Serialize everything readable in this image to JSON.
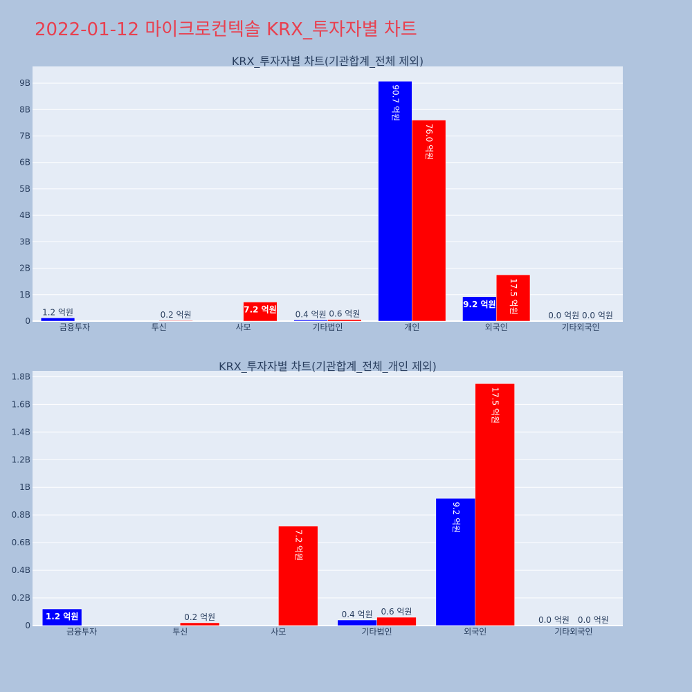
{
  "title": "2022-01-12 마이크로컨텍솔 KRX_투자자별 차트",
  "colors": {
    "series_a": "#0000ff",
    "series_b": "#ff0000",
    "background": "#b0c4de",
    "plot_bg": "#e5ecf6",
    "title": "#e8404f"
  },
  "chart_data": [
    {
      "type": "bar",
      "title": "KRX_투자자별 차트(기관합계_전체 제외)",
      "categories": [
        "금융투자",
        "투신",
        "사모",
        "기타법인",
        "개인",
        "외국인",
        "기타외국인"
      ],
      "series": [
        {
          "color": "#0000ff",
          "values": [
            120000000,
            0,
            0,
            40000000,
            9070000000,
            920000000,
            0
          ],
          "labels": [
            "1.2 억원",
            "",
            "",
            "0.4 억원",
            "90.7 억원",
            "9.2 억원",
            "0.0 억원"
          ]
        },
        {
          "color": "#ff0000",
          "values": [
            0,
            20000000,
            720000000,
            60000000,
            7600000000,
            1750000000,
            0
          ],
          "labels": [
            "",
            "0.2 억원",
            "7.2 억원",
            "0.6 억원",
            "76.0 억원",
            "17.5 억원",
            "0.0 억원"
          ]
        }
      ],
      "yticks": [
        0,
        1000000000,
        2000000000,
        3000000000,
        4000000000,
        5000000000,
        6000000000,
        7000000000,
        8000000000,
        9000000000
      ],
      "ytick_labels": [
        "0",
        "1B",
        "2B",
        "3B",
        "4B",
        "5B",
        "6B",
        "7B",
        "8B",
        "9B"
      ],
      "ylim": [
        0,
        9630000000
      ],
      "grid": true
    },
    {
      "type": "bar",
      "title": "KRX_투자자별 차트(기관합계_전체_개인 제외)",
      "categories": [
        "금융투자",
        "투신",
        "사모",
        "기타법인",
        "외국인",
        "기타외국인"
      ],
      "series": [
        {
          "color": "#0000ff",
          "values": [
            120000000,
            0,
            0,
            40000000,
            920000000,
            0
          ],
          "labels": [
            "1.2 억원",
            "",
            "",
            "0.4 억원",
            "9.2 억원",
            "0.0 억원"
          ]
        },
        {
          "color": "#ff0000",
          "values": [
            0,
            20000000,
            720000000,
            60000000,
            1750000000,
            0
          ],
          "labels": [
            "",
            "0.2 억원",
            "7.2 억원",
            "0.6 억원",
            "17.5 억원",
            "0.0 억원"
          ]
        }
      ],
      "yticks": [
        0,
        200000000,
        400000000,
        600000000,
        800000000,
        1000000000,
        1200000000,
        1400000000,
        1600000000,
        1800000000
      ],
      "ytick_labels": [
        "0",
        "0.2B",
        "0.4B",
        "0.6B",
        "0.8B",
        "1B",
        "1.2B",
        "1.4B",
        "1.6B",
        "1.8B"
      ],
      "ylim": [
        0,
        1842000000
      ],
      "grid": true
    }
  ]
}
